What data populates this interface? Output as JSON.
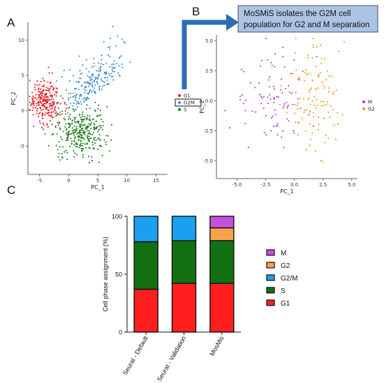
{
  "panels": {
    "a": "A",
    "b": "B",
    "c": "C"
  },
  "callout": {
    "line1": "MoSMiS isolates the G2M cell",
    "line2": "population for G2 and M separation",
    "fill_color": "#aac4e6",
    "arrow_color": "#2e6db4"
  },
  "chart_data": [
    {
      "id": "A",
      "type": "scatter",
      "xlabel": "PC_1",
      "ylabel": "PC_2",
      "xlim": [
        -7,
        17
      ],
      "ylim": [
        -9,
        12.5
      ],
      "xticks": [
        "-5",
        "0",
        "5",
        "10",
        "15"
      ],
      "xtick_values": [
        -5,
        0,
        5,
        10,
        15
      ],
      "yticks": [
        "-5",
        "0",
        "5",
        "10"
      ],
      "ytick_values": [
        -5,
        0,
        5,
        10
      ],
      "legend": {
        "placement": "right",
        "entries": [
          {
            "label": "G1",
            "color": "#e8141c"
          },
          {
            "label": "G2M",
            "color": "#3b8fd0"
          },
          {
            "label": "S",
            "color": "#1e7a1e"
          }
        ],
        "boxed_entry": "G2M"
      },
      "series": [
        {
          "name": "G1",
          "color": "#e8141c",
          "count": 230,
          "center": [
            -4,
            1.5
          ],
          "spread": [
            1.3,
            1.6
          ]
        },
        {
          "name": "G2M",
          "color": "#3b8fd0",
          "count": 220,
          "center": [
            4,
            3
          ],
          "spread": [
            2.6,
            3.1
          ]
        },
        {
          "name": "S",
          "color": "#1e7a1e",
          "count": 330,
          "center": [
            2,
            -3
          ],
          "spread": [
            2.2,
            1.7
          ]
        }
      ]
    },
    {
      "id": "B",
      "type": "scatter",
      "xlabel": "PC_1",
      "ylabel": "PC_2",
      "xlim": [
        -6.8,
        5.5
      ],
      "ylim": [
        -6.5,
        5.5
      ],
      "xticks": [
        "-5.0",
        "-2.5",
        "0.0",
        "2.5",
        "5.0"
      ],
      "xtick_values": [
        -5,
        -2.5,
        0,
        2.5,
        5
      ],
      "yticks": [
        "-5.0",
        "-2.5",
        "0.0",
        "2.5",
        "5.0"
      ],
      "ytick_values": [
        -5,
        -2.5,
        0,
        2.5,
        5
      ],
      "legend": {
        "placement": "right",
        "entries": [
          {
            "label": "M",
            "color": "#b23bd6"
          },
          {
            "label": "G2",
            "color": "#f29a18"
          }
        ]
      },
      "series": [
        {
          "name": "M",
          "color": "#b23bd6",
          "count": 95,
          "center": [
            -2,
            0
          ],
          "spread": [
            1.8,
            1.9
          ]
        },
        {
          "name": "G2",
          "color": "#f29a18",
          "count": 115,
          "center": [
            1.8,
            0.3
          ],
          "spread": [
            1.3,
            2.2
          ]
        }
      ]
    },
    {
      "id": "C",
      "type": "bar",
      "stacked": true,
      "ylabel": "Cell phase assignment (%)",
      "ylim": [
        0,
        100
      ],
      "yticks": [
        "0",
        "50",
        "100"
      ],
      "ytick_values": [
        0,
        50,
        100
      ],
      "categories": [
        "Seurat - Default",
        "Seurat - Validation",
        "MosMis"
      ],
      "legend": {
        "placement": "right",
        "order": [
          "M",
          "G2",
          "G2/M",
          "S",
          "G1"
        ]
      },
      "series": [
        {
          "name": "G1",
          "color": "#ff1f1f",
          "values": [
            37,
            42,
            42
          ]
        },
        {
          "name": "S",
          "color": "#127012",
          "values": [
            41,
            37,
            37
          ]
        },
        {
          "name": "G2/M",
          "color": "#1ba0f0",
          "values": [
            22,
            21,
            0
          ]
        },
        {
          "name": "G2",
          "color": "#f7a24a",
          "values": [
            0,
            0,
            11
          ]
        },
        {
          "name": "M",
          "color": "#c64fdc",
          "values": [
            0,
            0,
            10
          ]
        }
      ]
    }
  ]
}
